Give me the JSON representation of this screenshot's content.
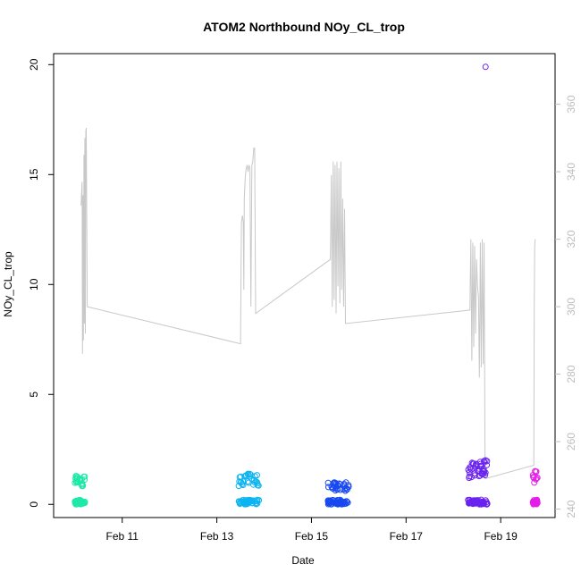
{
  "chart_data": {
    "type": "scatter",
    "title": "ATOM2 Northbound NOy_CL_trop",
    "xlabel": "Date",
    "ylabel": "NOy_CL_trop",
    "x_ticks": [
      "Feb 11",
      "Feb 13",
      "Feb 15",
      "Feb 17",
      "Feb 19"
    ],
    "x_tick_days": [
      11,
      13,
      15,
      17,
      19
    ],
    "xlim_days": [
      9.55,
      20.15
    ],
    "ylim": [
      -0.6,
      20.5
    ],
    "y_ticks": [
      0,
      5,
      10,
      15,
      20
    ],
    "right_ylim": [
      237.5,
      375
    ],
    "right_y_ticks": [
      240,
      260,
      280,
      300,
      320,
      340,
      360
    ],
    "colors": {
      "line": "#c8c8c8",
      "right_axis_text": "#bdbdbd"
    },
    "line_series": {
      "axis": "right",
      "points": [
        [
          10.13,
          330
        ],
        [
          10.15,
          337
        ],
        [
          10.16,
          286
        ],
        [
          10.17,
          333
        ],
        [
          10.18,
          290
        ],
        [
          10.19,
          345
        ],
        [
          10.2,
          295
        ],
        [
          10.21,
          350
        ],
        [
          10.22,
          292
        ],
        [
          10.23,
          352
        ],
        [
          10.24,
          353
        ],
        [
          10.26,
          300
        ],
        [
          13.5,
          289
        ],
        [
          13.52,
          325
        ],
        [
          13.54,
          327
        ],
        [
          13.56,
          325
        ],
        [
          13.57,
          305
        ],
        [
          13.58,
          332
        ],
        [
          13.6,
          338
        ],
        [
          13.62,
          341
        ],
        [
          13.64,
          342
        ],
        [
          13.66,
          340
        ],
        [
          13.68,
          342
        ],
        [
          13.7,
          341
        ],
        [
          13.72,
          300
        ],
        [
          13.74,
          342
        ],
        [
          13.76,
          343
        ],
        [
          13.78,
          347
        ],
        [
          13.8,
          347
        ],
        [
          13.82,
          298
        ],
        [
          15.4,
          314
        ],
        [
          15.42,
          339
        ],
        [
          15.44,
          300
        ],
        [
          15.46,
          343
        ],
        [
          15.48,
          302
        ],
        [
          15.5,
          342
        ],
        [
          15.52,
          298
        ],
        [
          15.54,
          343
        ],
        [
          15.56,
          306
        ],
        [
          15.58,
          341
        ],
        [
          15.6,
          301
        ],
        [
          15.62,
          343
        ],
        [
          15.64,
          305
        ],
        [
          15.66,
          332
        ],
        [
          15.68,
          300
        ],
        [
          15.7,
          329
        ],
        [
          15.72,
          295
        ],
        [
          18.35,
          299
        ],
        [
          18.37,
          320
        ],
        [
          18.39,
          284
        ],
        [
          18.41,
          319
        ],
        [
          18.43,
          288
        ],
        [
          18.45,
          318
        ],
        [
          18.47,
          292
        ],
        [
          18.49,
          314
        ],
        [
          18.51,
          306
        ],
        [
          18.53,
          303
        ],
        [
          18.55,
          279
        ],
        [
          18.57,
          319
        ],
        [
          18.59,
          282
        ],
        [
          18.61,
          320
        ],
        [
          18.63,
          283
        ],
        [
          18.65,
          319
        ],
        [
          18.67,
          249
        ],
        [
          19.7,
          253
        ],
        [
          19.71,
          300
        ],
        [
          19.72,
          318
        ],
        [
          19.73,
          320
        ]
      ]
    },
    "series": [
      {
        "color": "#1de9a8",
        "x_range": [
          10.0,
          10.22
        ],
        "y_max": 1.3,
        "count": 70
      },
      {
        "color": "#0cb4f0",
        "x_range": [
          13.45,
          13.9
        ],
        "y_max": 1.4,
        "count": 75
      },
      {
        "color": "#1848f0",
        "x_range": [
          15.35,
          15.8
        ],
        "y_max": 1.0,
        "count": 90
      },
      {
        "color": "#6a22f0",
        "x_range": [
          18.3,
          18.72
        ],
        "y_max": 2.0,
        "count": 95
      },
      {
        "color": "#e41ee8",
        "x_range": [
          19.68,
          19.78
        ],
        "y_max": 1.6,
        "count": 40
      }
    ],
    "outliers": [
      {
        "x": 18.68,
        "y": 19.9,
        "color": "#6a22f0"
      },
      {
        "x": 18.68,
        "y": 2.0,
        "color": "#6a22f0"
      }
    ]
  }
}
